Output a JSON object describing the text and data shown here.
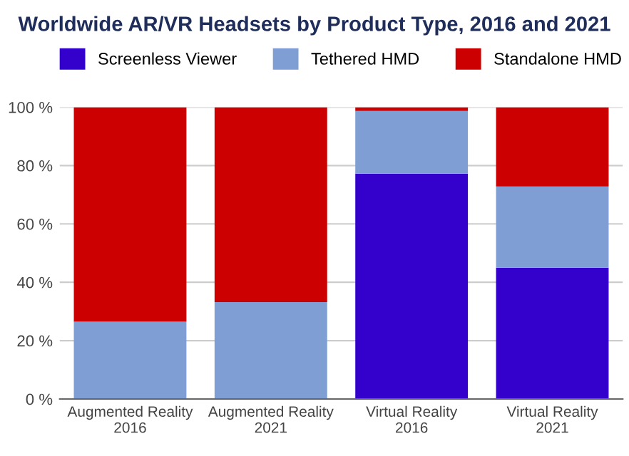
{
  "chart_data": {
    "type": "bar",
    "title": "Worldwide AR/VR Headsets by Product Type, 2016 and 2021",
    "categories": [
      "Augmented Reality\n2016",
      "Augmented Reality\n2021",
      "Virtual Reality\n2016",
      "Virtual Reality\n2021"
    ],
    "series": [
      {
        "name": "Screenless Viewer",
        "color": "#3300cc",
        "values": [
          0,
          0,
          77.2,
          45.0
        ]
      },
      {
        "name": "Tethered HMD",
        "color": "#7f9ed3",
        "values": [
          26.5,
          33.2,
          21.5,
          27.8
        ]
      },
      {
        "name": "Standalone HMD",
        "color": "#cc0000",
        "values": [
          73.5,
          66.8,
          1.3,
          27.2
        ]
      }
    ],
    "stacked": true,
    "ylim": [
      0,
      100
    ],
    "yticks": [
      {
        "value": 0,
        "label": "0 %"
      },
      {
        "value": 20,
        "label": "20 %"
      },
      {
        "value": 40,
        "label": "40 %"
      },
      {
        "value": 60,
        "label": "60 %"
      },
      {
        "value": 80,
        "label": "80 %"
      },
      {
        "value": 100,
        "label": "100 %"
      }
    ],
    "grid": "y",
    "legend": "top"
  }
}
